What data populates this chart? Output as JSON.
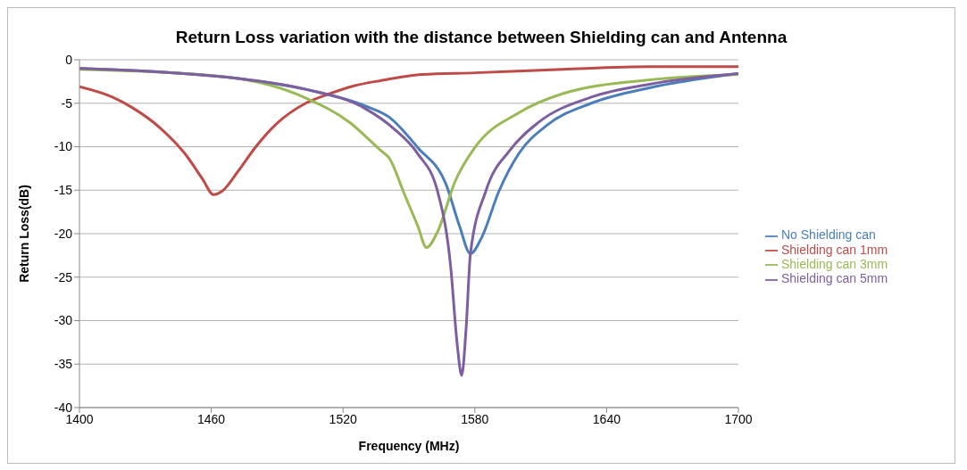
{
  "chart_data": {
    "type": "line",
    "title": "Return Loss variation with the distance between Shielding can and Antenna",
    "xlabel": "Frequency  (MHz)",
    "ylabel": "Return Loss(dB)",
    "xlim": [
      1400,
      1700
    ],
    "xticks": [
      1400,
      1460,
      1520,
      1580,
      1640,
      1700
    ],
    "ylim": [
      -40,
      0
    ],
    "yticks": [
      -40,
      -35,
      -30,
      -25,
      -20,
      -15,
      -10,
      -5,
      0
    ],
    "grid": "y",
    "legend": "right",
    "marker": "none",
    "line_style": "solid",
    "series": [
      {
        "name": "No Shielding can",
        "color": "#4a7ebb",
        "x": [
          1400,
          1437,
          1477,
          1503,
          1530,
          1541,
          1554,
          1567,
          1573,
          1578,
          1583,
          1591,
          1600,
          1613,
          1633,
          1660,
          1700
        ],
        "values": [
          -1.0,
          -1.4,
          -2.3,
          -3.4,
          -5.3,
          -6.6,
          -10.1,
          -14.4,
          -19.1,
          -22.3,
          -20.5,
          -15.1,
          -10.8,
          -7.5,
          -5.0,
          -3.2,
          -1.6
        ]
      },
      {
        "name": "Shielding can 1mm",
        "color": "#be4b48",
        "x": [
          1400,
          1415,
          1424,
          1437,
          1448,
          1456,
          1461,
          1465,
          1472,
          1480,
          1490,
          1503,
          1514,
          1525,
          1537,
          1556,
          1580,
          1620,
          1660,
          1700
        ],
        "values": [
          -3.1,
          -4.3,
          -5.5,
          -7.9,
          -10.8,
          -13.7,
          -15.5,
          -15.1,
          -12.9,
          -10.1,
          -7.3,
          -5.0,
          -3.9,
          -3.0,
          -2.4,
          -1.7,
          -1.5,
          -1.1,
          -0.8,
          -0.8
        ]
      },
      {
        "name": "Shielding can 3mm",
        "color": "#98b954",
        "x": [
          1400,
          1464,
          1503,
          1523,
          1537,
          1541,
          1548,
          1554,
          1558,
          1563,
          1571,
          1580,
          1600,
          1620,
          1660,
          1700
        ],
        "values": [
          -1.1,
          -1.9,
          -4.4,
          -7.2,
          -10.4,
          -11.3,
          -15.5,
          -19.1,
          -21.6,
          -19.8,
          -14.0,
          -10.1,
          -6.1,
          -3.9,
          -2.3,
          -1.7
        ]
      },
      {
        "name": "Shielding can 5mm",
        "color": "#7d5fa0",
        "x": [
          1400,
          1437,
          1477,
          1503,
          1530,
          1543,
          1554,
          1563,
          1569,
          1572,
          1574,
          1576,
          1578,
          1585,
          1596,
          1609,
          1633,
          1660,
          1700
        ],
        "values": [
          -1.0,
          -1.4,
          -2.3,
          -3.4,
          -5.6,
          -7.9,
          -10.8,
          -15.1,
          -23.8,
          -32.8,
          -36.3,
          -31.0,
          -22.3,
          -15.1,
          -10.4,
          -7.2,
          -4.3,
          -2.8,
          -1.6
        ]
      }
    ]
  }
}
